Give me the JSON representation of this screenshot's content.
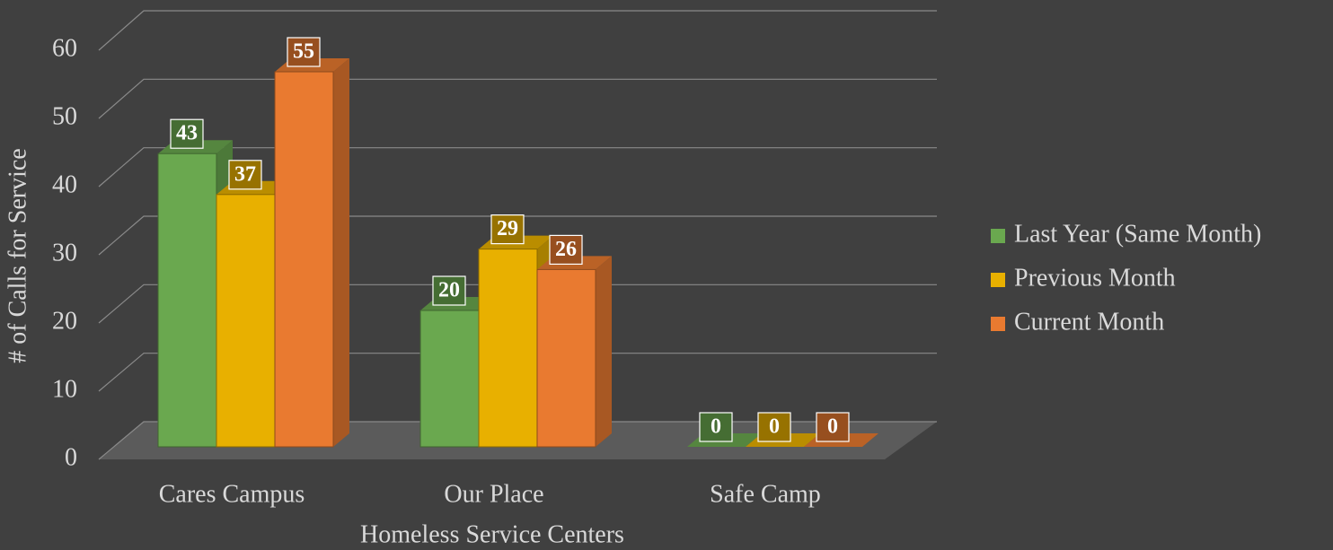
{
  "chart_data": {
    "type": "bar3d",
    "x_label": "Homeless Service Centers",
    "y_label": "# of Calls for Service",
    "categories": [
      "Cares Campus",
      "Our Place",
      "Safe Camp"
    ],
    "series": [
      {
        "name": "Last Year (Same Month)",
        "color": "#6aa84f",
        "values": [
          43,
          20,
          0
        ]
      },
      {
        "name": "Previous Month",
        "color": "#e8b000",
        "values": [
          37,
          29,
          0
        ]
      },
      {
        "name": "Current Month",
        "color": "#e97a30",
        "values": [
          55,
          26,
          0
        ]
      }
    ],
    "ylim": [
      0,
      60
    ],
    "yticks": [
      0,
      10,
      20,
      30,
      40,
      50,
      60
    ],
    "grid": true,
    "legend": "right"
  }
}
